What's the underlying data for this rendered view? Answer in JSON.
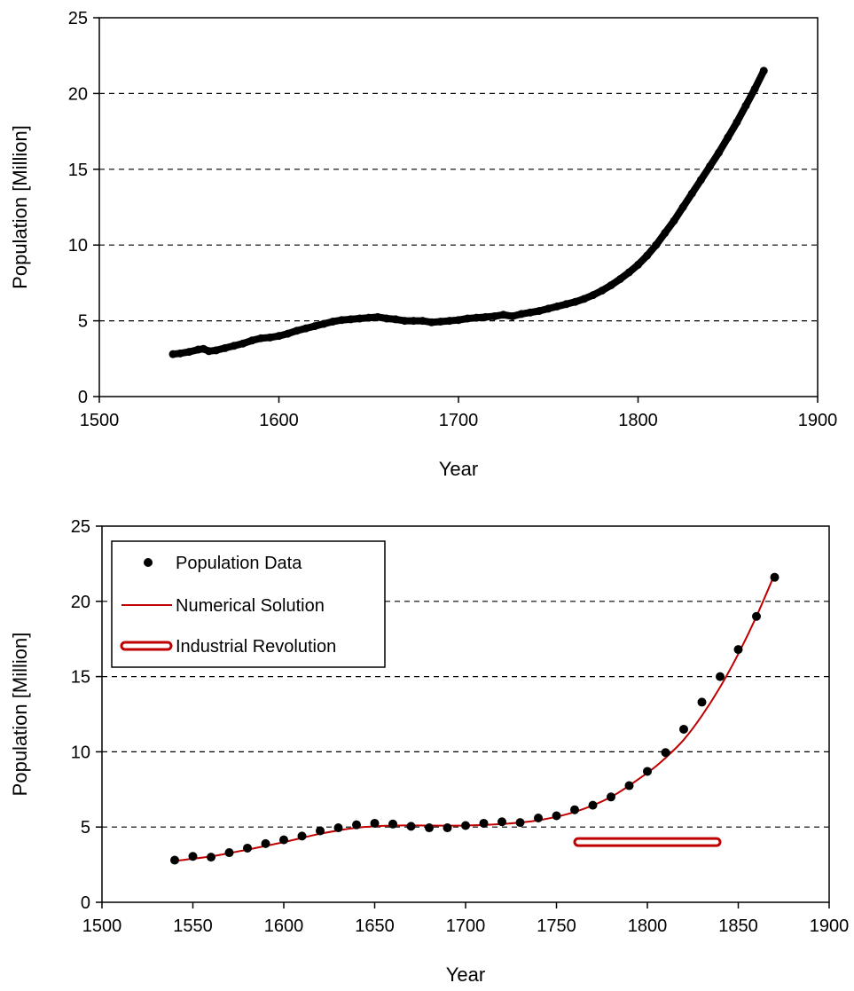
{
  "chart_data": [
    {
      "type": "scatter",
      "xlabel": "Year",
      "ylabel": "Population [Million]",
      "xlim": [
        1500,
        1900
      ],
      "ylim": [
        0,
        25
      ],
      "x_ticks": [
        1500,
        1600,
        1700,
        1800,
        1900
      ],
      "y_ticks": [
        0,
        5,
        10,
        15,
        20,
        25
      ],
      "grid": "horizontal dashed",
      "marker_color": "#000000",
      "series": [
        {
          "points": [
            [
              1541,
              2.8
            ],
            [
              1545,
              2.85
            ],
            [
              1550,
              2.95
            ],
            [
              1555,
              3.1
            ],
            [
              1558,
              3.15
            ],
            [
              1561,
              3.0
            ],
            [
              1565,
              3.05
            ],
            [
              1570,
              3.2
            ],
            [
              1575,
              3.35
            ],
            [
              1580,
              3.5
            ],
            [
              1585,
              3.7
            ],
            [
              1590,
              3.85
            ],
            [
              1595,
              3.9
            ],
            [
              1600,
              4.0
            ],
            [
              1605,
              4.15
            ],
            [
              1610,
              4.35
            ],
            [
              1615,
              4.5
            ],
            [
              1620,
              4.65
            ],
            [
              1625,
              4.8
            ],
            [
              1630,
              4.95
            ],
            [
              1635,
              5.05
            ],
            [
              1640,
              5.1
            ],
            [
              1645,
              5.15
            ],
            [
              1650,
              5.2
            ],
            [
              1655,
              5.25
            ],
            [
              1660,
              5.15
            ],
            [
              1665,
              5.1
            ],
            [
              1670,
              5.0
            ],
            [
              1675,
              5.0
            ],
            [
              1680,
              5.0
            ],
            [
              1685,
              4.9
            ],
            [
              1690,
              4.95
            ],
            [
              1695,
              5.0
            ],
            [
              1700,
              5.05
            ],
            [
              1705,
              5.15
            ],
            [
              1710,
              5.2
            ],
            [
              1715,
              5.25
            ],
            [
              1720,
              5.3
            ],
            [
              1725,
              5.4
            ],
            [
              1730,
              5.3
            ],
            [
              1735,
              5.45
            ],
            [
              1740,
              5.55
            ],
            [
              1745,
              5.65
            ],
            [
              1750,
              5.8
            ],
            [
              1755,
              5.95
            ],
            [
              1760,
              6.1
            ],
            [
              1765,
              6.25
            ],
            [
              1770,
              6.45
            ],
            [
              1775,
              6.7
            ],
            [
              1780,
              7.0
            ],
            [
              1785,
              7.35
            ],
            [
              1790,
              7.75
            ],
            [
              1795,
              8.2
            ],
            [
              1800,
              8.7
            ],
            [
              1805,
              9.3
            ],
            [
              1810,
              10.0
            ],
            [
              1815,
              10.8
            ],
            [
              1820,
              11.6
            ],
            [
              1825,
              12.5
            ],
            [
              1830,
              13.4
            ],
            [
              1835,
              14.3
            ],
            [
              1840,
              15.2
            ],
            [
              1845,
              16.1
            ],
            [
              1850,
              17.1
            ],
            [
              1855,
              18.1
            ],
            [
              1860,
              19.2
            ],
            [
              1865,
              20.3
            ],
            [
              1870,
              21.5
            ]
          ]
        }
      ]
    },
    {
      "type": "scatter",
      "xlabel": "Year",
      "ylabel": "Population [Million]",
      "xlim": [
        1500,
        1900
      ],
      "ylim": [
        0,
        25
      ],
      "x_ticks": [
        1500,
        1550,
        1600,
        1650,
        1700,
        1750,
        1800,
        1850,
        1900
      ],
      "y_ticks": [
        0,
        5,
        10,
        15,
        20,
        25
      ],
      "grid": "horizontal dashed",
      "legend_position": "top-left",
      "series": [
        {
          "name": "Population Data",
          "kind": "points",
          "color": "#000000",
          "points": [
            [
              1540,
              2.8
            ],
            [
              1550,
              3.05
            ],
            [
              1560,
              3.0
            ],
            [
              1570,
              3.3
            ],
            [
              1580,
              3.6
            ],
            [
              1590,
              3.9
            ],
            [
              1600,
              4.15
            ],
            [
              1610,
              4.4
            ],
            [
              1620,
              4.75
            ],
            [
              1630,
              4.95
            ],
            [
              1640,
              5.15
            ],
            [
              1650,
              5.25
            ],
            [
              1660,
              5.2
            ],
            [
              1670,
              5.05
            ],
            [
              1680,
              4.95
            ],
            [
              1690,
              4.95
            ],
            [
              1700,
              5.1
            ],
            [
              1710,
              5.25
            ],
            [
              1720,
              5.35
            ],
            [
              1730,
              5.3
            ],
            [
              1740,
              5.6
            ],
            [
              1750,
              5.75
            ],
            [
              1760,
              6.15
            ],
            [
              1770,
              6.45
            ],
            [
              1780,
              7.0
            ],
            [
              1790,
              7.75
            ],
            [
              1800,
              8.7
            ],
            [
              1810,
              9.95
            ],
            [
              1820,
              11.5
            ],
            [
              1830,
              13.3
            ],
            [
              1840,
              15.0
            ],
            [
              1850,
              16.8
            ],
            [
              1860,
              19.0
            ],
            [
              1870,
              21.6
            ]
          ]
        },
        {
          "name": "Numerical Solution",
          "kind": "line",
          "color": "#c00000",
          "points": [
            [
              1540,
              2.75
            ],
            [
              1560,
              3.05
            ],
            [
              1580,
              3.5
            ],
            [
              1600,
              4.0
            ],
            [
              1620,
              4.55
            ],
            [
              1640,
              4.95
            ],
            [
              1660,
              5.1
            ],
            [
              1680,
              5.1
            ],
            [
              1700,
              5.1
            ],
            [
              1720,
              5.2
            ],
            [
              1740,
              5.45
            ],
            [
              1760,
              6.0
            ],
            [
              1780,
              7.0
            ],
            [
              1800,
              8.6
            ],
            [
              1810,
              9.6
            ],
            [
              1820,
              10.8
            ],
            [
              1830,
              12.4
            ],
            [
              1840,
              14.3
            ],
            [
              1850,
              16.5
            ],
            [
              1860,
              19.0
            ],
            [
              1870,
              21.8
            ]
          ]
        },
        {
          "name": "Industrial Revolution",
          "kind": "bar",
          "color": "#c00000",
          "x_range": [
            1760,
            1840
          ],
          "y": 4.0
        }
      ]
    }
  ]
}
